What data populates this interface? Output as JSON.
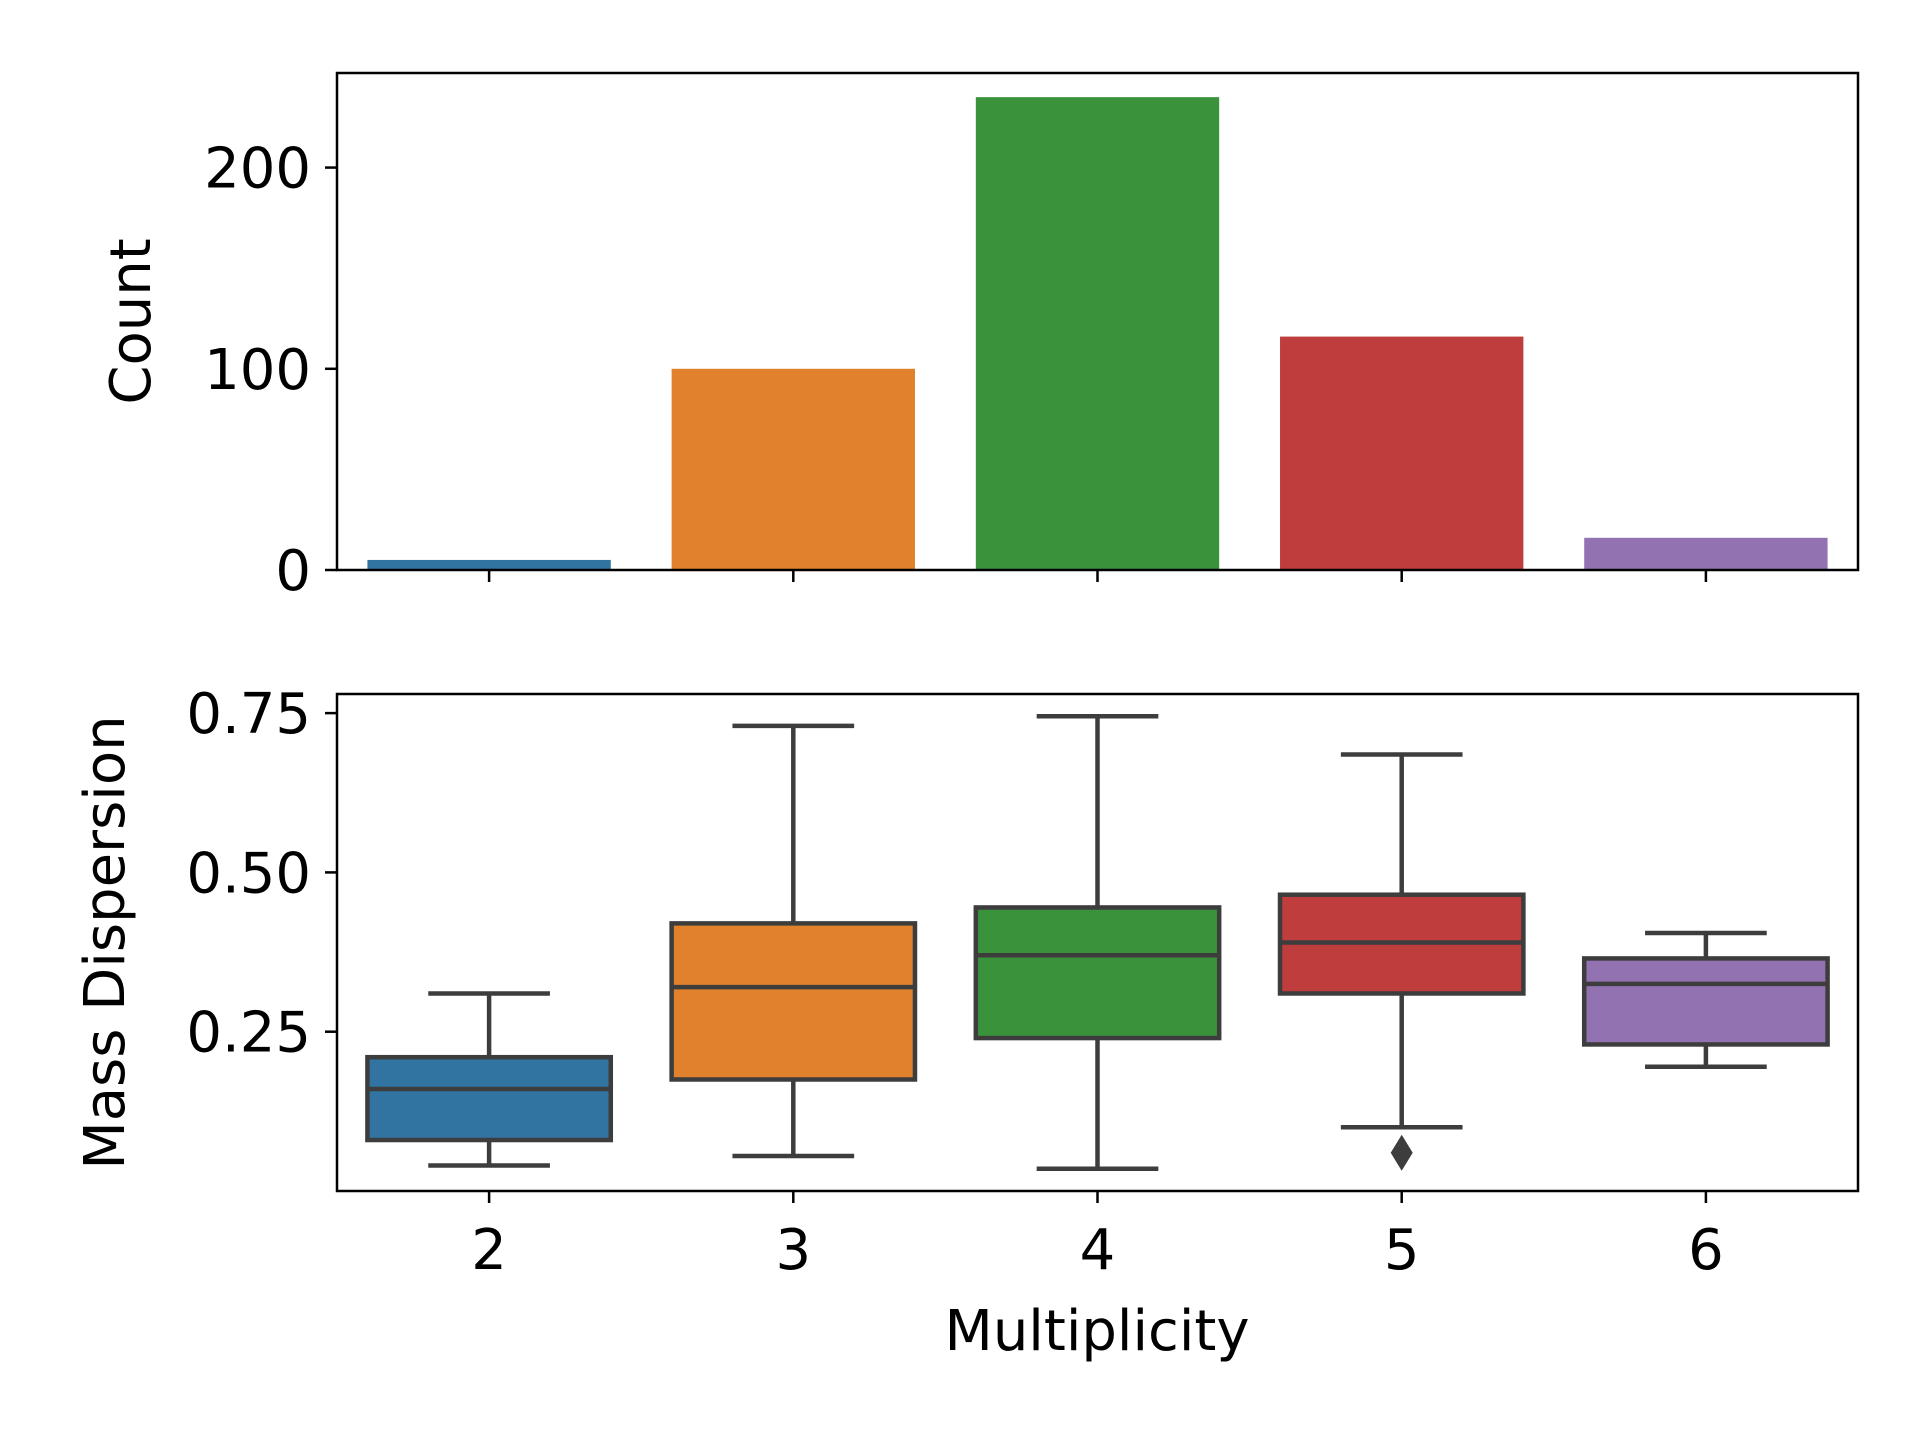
{
  "chart_data": [
    {
      "type": "bar",
      "categories": [
        "2",
        "3",
        "4",
        "5",
        "6"
      ],
      "values": [
        5,
        100,
        235,
        116,
        16
      ],
      "colors": [
        "#3274a1",
        "#e1812c",
        "#3a923a",
        "#c03d3e",
        "#9372b2"
      ],
      "title": "",
      "xlabel": "",
      "ylabel": "Count",
      "ylim": [
        0,
        247
      ],
      "yticks": [
        0,
        100,
        200
      ],
      "ytick_labels": [
        "0",
        "100",
        "200"
      ]
    },
    {
      "type": "box",
      "categories": [
        "2",
        "3",
        "4",
        "5",
        "6"
      ],
      "colors": [
        "#3274a1",
        "#e1812c",
        "#3a923a",
        "#c03d3e",
        "#9372b2"
      ],
      "boxes": [
        {
          "category": "2",
          "whisker_low": 0.04,
          "q1": 0.08,
          "median": 0.16,
          "q3": 0.21,
          "whisker_high": 0.31,
          "outliers": []
        },
        {
          "category": "3",
          "whisker_low": 0.055,
          "q1": 0.175,
          "median": 0.32,
          "q3": 0.42,
          "whisker_high": 0.73,
          "outliers": []
        },
        {
          "category": "4",
          "whisker_low": 0.035,
          "q1": 0.24,
          "median": 0.37,
          "q3": 0.445,
          "whisker_high": 0.745,
          "outliers": []
        },
        {
          "category": "5",
          "whisker_low": 0.1,
          "q1": 0.31,
          "median": 0.39,
          "q3": 0.465,
          "whisker_high": 0.685,
          "outliers": [
            0.06
          ]
        },
        {
          "category": "6",
          "whisker_low": 0.195,
          "q1": 0.23,
          "median": 0.325,
          "q3": 0.365,
          "whisker_high": 0.405,
          "outliers": []
        }
      ],
      "title": "",
      "xlabel": "Multiplicity",
      "ylabel": "Mass Dispersion",
      "ylim": [
        -0.0,
        0.78
      ],
      "yticks": [
        0.25,
        0.5,
        0.75
      ],
      "ytick_labels": [
        "0.25",
        "0.50",
        "0.75"
      ]
    }
  ]
}
